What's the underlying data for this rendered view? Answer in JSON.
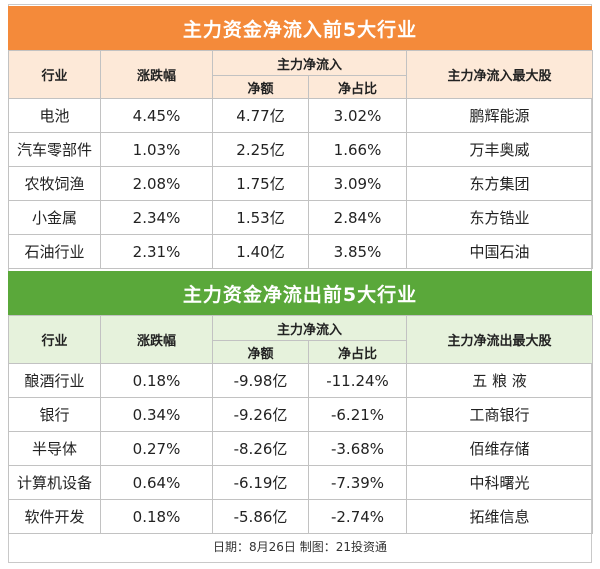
{
  "inflow": {
    "title": "主力资金净流入前5大行业",
    "headers": {
      "industry": "行业",
      "change": "涨跌幅",
      "main_flow": "主力净流入",
      "net_amount": "净额",
      "net_ratio": "净占比",
      "top_stock": "主力净流入最大股"
    },
    "rows": [
      {
        "industry": "电池",
        "change": "4.45%",
        "net_amount": "4.77亿",
        "net_ratio": "3.02%",
        "top_stock": "鹏辉能源"
      },
      {
        "industry": "汽车零部件",
        "change": "1.03%",
        "net_amount": "2.25亿",
        "net_ratio": "1.66%",
        "top_stock": "万丰奥威"
      },
      {
        "industry": "农牧饲渔",
        "change": "2.08%",
        "net_amount": "1.75亿",
        "net_ratio": "3.09%",
        "top_stock": "东方集团"
      },
      {
        "industry": "小金属",
        "change": "2.34%",
        "net_amount": "1.53亿",
        "net_ratio": "2.84%",
        "top_stock": "东方锆业"
      },
      {
        "industry": "石油行业",
        "change": "2.31%",
        "net_amount": "1.40亿",
        "net_ratio": "3.85%",
        "top_stock": "中国石油"
      }
    ]
  },
  "outflow": {
    "title": "主力资金净流出前5大行业",
    "headers": {
      "industry": "行业",
      "change": "涨跌幅",
      "main_flow": "主力净流入",
      "net_amount": "净额",
      "net_ratio": "净占比",
      "top_stock": "主力净流出最大股"
    },
    "rows": [
      {
        "industry": "酿酒行业",
        "change": "0.18%",
        "net_amount": "-9.98亿",
        "net_ratio": "-11.24%",
        "top_stock": "五 粮 液"
      },
      {
        "industry": "银行",
        "change": "0.34%",
        "net_amount": "-9.26亿",
        "net_ratio": "-6.21%",
        "top_stock": "工商银行"
      },
      {
        "industry": "半导体",
        "change": "0.27%",
        "net_amount": "-8.26亿",
        "net_ratio": "-3.68%",
        "top_stock": "佰维存储"
      },
      {
        "industry": "计算机设备",
        "change": "0.64%",
        "net_amount": "-6.19亿",
        "net_ratio": "-7.39%",
        "top_stock": "中科曙光"
      },
      {
        "industry": "软件开发",
        "change": "0.18%",
        "net_amount": "-5.86亿",
        "net_ratio": "-2.74%",
        "top_stock": "拓维信息"
      }
    ]
  },
  "footer": "日期：8月26日 制图：21投资通",
  "colors": {
    "inflow_banner": "#f48a3a",
    "inflow_header": "#fde9d8",
    "outflow_banner": "#5aa83a",
    "outflow_header": "#e6f2dc"
  }
}
